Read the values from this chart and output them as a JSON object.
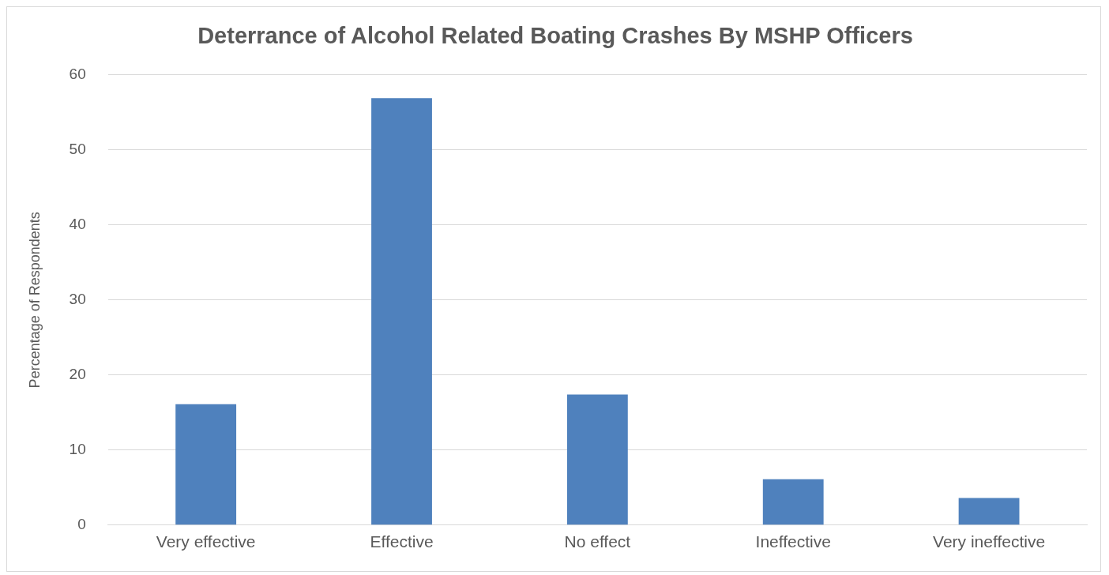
{
  "chart_data": {
    "type": "bar",
    "title": "Deterrance of Alcohol Related Boating Crashes By MSHP Officers",
    "ylabel": "Percentage of Respondents",
    "categories": [
      "Very effective",
      "Effective",
      "No effect",
      "Ineffective",
      "Very ineffective"
    ],
    "values": [
      16.1,
      56.9,
      17.4,
      6.1,
      3.6
    ],
    "color": "#4f81bd",
    "ylim": [
      0,
      60
    ],
    "yticks": [
      0,
      10,
      20,
      30,
      40,
      50,
      60
    ],
    "grid": "y",
    "legend": false
  }
}
